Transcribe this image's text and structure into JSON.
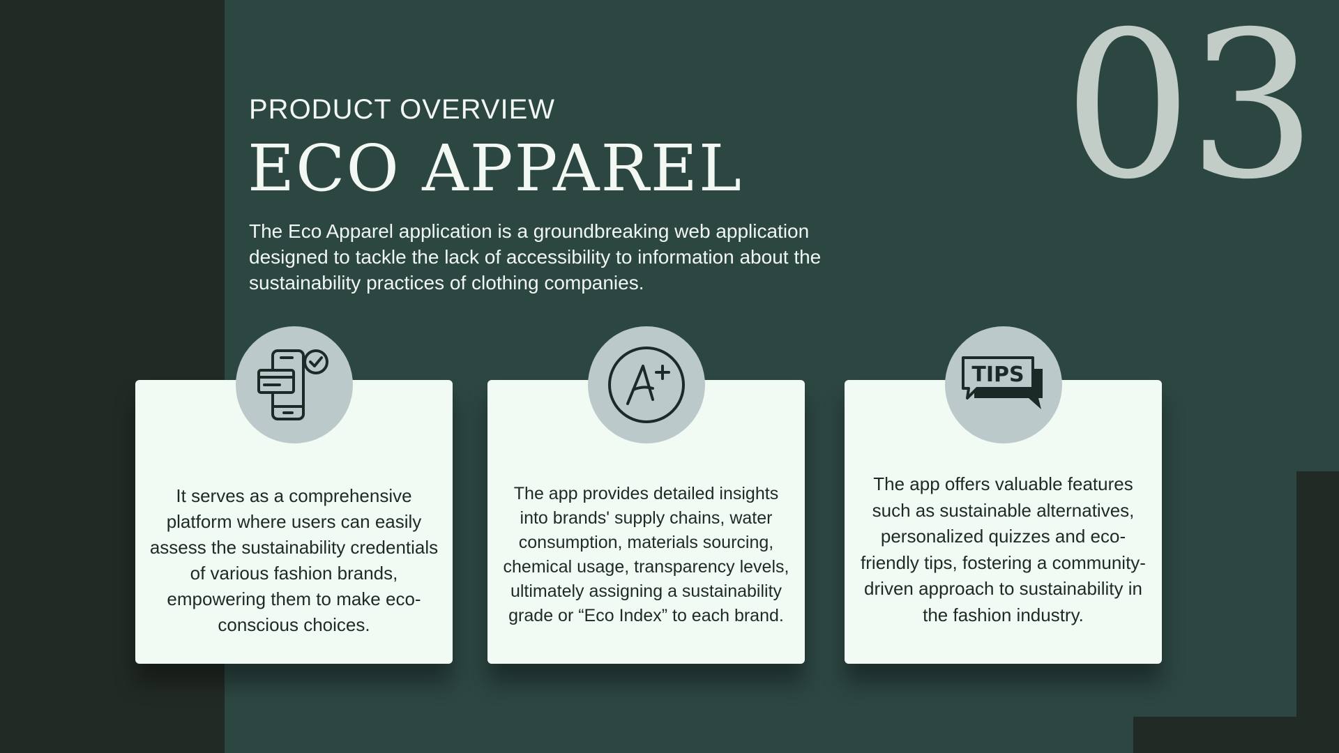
{
  "slide": {
    "number": "03",
    "eyebrow": "PRODUCT OVERVIEW",
    "title": "ECO APPAREL",
    "intro": "The Eco Apparel application is a groundbreaking web application designed to tackle the lack of accessibility to information about the sustainability practices of clothing companies."
  },
  "cards": [
    {
      "icon": "mobile-payment-icon",
      "text": "It serves as a comprehensive platform where users can easily assess the sustainability credentials of various fashion brands, empowering them to make eco-conscious choices."
    },
    {
      "icon": "a-plus-grade-icon",
      "icon_label": "A+",
      "text": "The app provides detailed insights into brands' supply chains, water consumption, materials sourcing, chemical usage, transparency levels, ultimately assigning a sustainability grade or “Eco Index” to each brand."
    },
    {
      "icon": "tips-speech-bubble-icon",
      "icon_label": "TIPS",
      "text": "The app offers valuable features such as sustainable alternatives, personalized quizzes and eco-friendly tips, fostering a community-driven approach to sustainability in the fashion industry."
    }
  ],
  "colors": {
    "background": "#2c4642",
    "dark_band": "#222a25",
    "card": "#f1fbf4",
    "icon_circle": "#bcc9cb",
    "slide_number": "#c3cdc8"
  }
}
